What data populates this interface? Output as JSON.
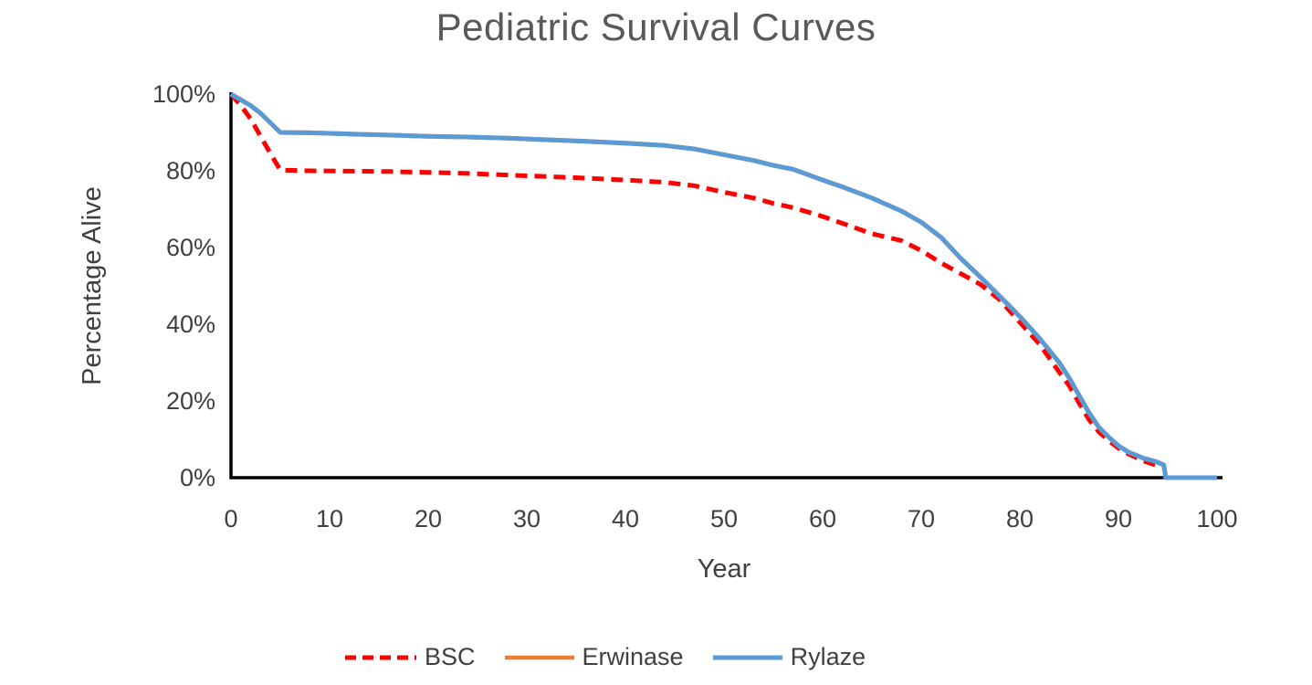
{
  "title": "Pediatric Survival Curves",
  "colors": {
    "title_text": "#595959",
    "axis_text": "#404040",
    "axis_line": "#000000",
    "background": "#ffffff",
    "bsc_red": "#ff0000",
    "erwinase_orange": "#ed7d31",
    "rylaze_blue": "#5b9bd5"
  },
  "chart_data": {
    "type": "line",
    "title": "Pediatric Survival Curves",
    "xlabel": "Year",
    "ylabel": "Percentage Alive",
    "xlim": [
      0,
      100
    ],
    "ylim": [
      0,
      100
    ],
    "xticks": [
      0,
      10,
      20,
      30,
      40,
      50,
      60,
      70,
      80,
      90,
      100
    ],
    "yticks": [
      0,
      20,
      40,
      60,
      80,
      100
    ],
    "ytick_labels": [
      "0%",
      "20%",
      "40%",
      "60%",
      "80%",
      "100%"
    ],
    "grid": false,
    "legend_position": "bottom-center",
    "series": [
      {
        "name": "BSC",
        "color": "#ff0000",
        "style": "dashed",
        "visible_in_plot": true,
        "points": [
          [
            0,
            100
          ],
          [
            1,
            97
          ],
          [
            2,
            93.5
          ],
          [
            3,
            89
          ],
          [
            4,
            84.5
          ],
          [
            5,
            80.2
          ],
          [
            8,
            80
          ],
          [
            12,
            79.9
          ],
          [
            16,
            79.8
          ],
          [
            20,
            79.6
          ],
          [
            24,
            79.3
          ],
          [
            28,
            78.9
          ],
          [
            32,
            78.5
          ],
          [
            36,
            78.1
          ],
          [
            40,
            77.6
          ],
          [
            44,
            77
          ],
          [
            47,
            76.1
          ],
          [
            50,
            74.4
          ],
          [
            53,
            72.9
          ],
          [
            55,
            71.5
          ],
          [
            57,
            70.4
          ],
          [
            60,
            68.1
          ],
          [
            62,
            66.3
          ],
          [
            65,
            63.6
          ],
          [
            68,
            61.8
          ],
          [
            70,
            59.2
          ],
          [
            72,
            56
          ],
          [
            74,
            53.2
          ],
          [
            76,
            50.4
          ],
          [
            78,
            46.3
          ],
          [
            80,
            40.5
          ],
          [
            82,
            34.8
          ],
          [
            84,
            27.5
          ],
          [
            85,
            24
          ],
          [
            86,
            19.5
          ],
          [
            87,
            15.2
          ],
          [
            88,
            12
          ],
          [
            89,
            9.7
          ],
          [
            90,
            7.7
          ],
          [
            91,
            6.2
          ],
          [
            92.5,
            4.4
          ],
          [
            94,
            3.1
          ]
        ]
      },
      {
        "name": "Erwinase",
        "color": "#ed7d31",
        "style": "solid",
        "visible_in_plot": false,
        "points": [
          [
            0,
            100
          ],
          [
            1,
            98.5
          ],
          [
            2,
            97
          ],
          [
            3,
            95
          ],
          [
            4,
            92.5
          ],
          [
            5,
            90
          ],
          [
            8,
            89.9
          ],
          [
            12,
            89.6
          ],
          [
            16,
            89.3
          ],
          [
            20,
            89
          ],
          [
            24,
            88.8
          ],
          [
            28,
            88.5
          ],
          [
            32,
            88.1
          ],
          [
            36,
            87.7
          ],
          [
            40,
            87.2
          ],
          [
            44,
            86.6
          ],
          [
            47,
            85.7
          ],
          [
            50,
            84.2
          ],
          [
            53,
            82.7
          ],
          [
            55,
            81.4
          ],
          [
            57,
            80.4
          ],
          [
            60,
            77.6
          ],
          [
            62,
            75.8
          ],
          [
            65,
            72.9
          ],
          [
            68,
            69.5
          ],
          [
            70,
            66.6
          ],
          [
            72,
            62.7
          ],
          [
            74,
            57.2
          ],
          [
            76,
            52.3
          ],
          [
            78,
            47.2
          ],
          [
            80,
            42
          ],
          [
            82,
            36.3
          ],
          [
            84,
            30
          ],
          [
            85,
            26
          ],
          [
            86,
            21.5
          ],
          [
            87,
            17
          ],
          [
            88,
            13.2
          ],
          [
            89,
            10.6
          ],
          [
            90,
            8.3
          ],
          [
            91,
            6.7
          ],
          [
            92.5,
            5.1
          ],
          [
            93.8,
            4.2
          ],
          [
            94.6,
            3.3
          ],
          [
            94.8,
            0
          ],
          [
            100,
            0
          ]
        ]
      },
      {
        "name": "Rylaze",
        "color": "#5b9bd5",
        "style": "solid",
        "visible_in_plot": true,
        "points": [
          [
            0,
            100
          ],
          [
            1,
            98.5
          ],
          [
            2,
            97
          ],
          [
            3,
            95
          ],
          [
            4,
            92.5
          ],
          [
            5,
            90
          ],
          [
            8,
            89.9
          ],
          [
            12,
            89.6
          ],
          [
            16,
            89.3
          ],
          [
            20,
            89
          ],
          [
            24,
            88.8
          ],
          [
            28,
            88.5
          ],
          [
            32,
            88.1
          ],
          [
            36,
            87.7
          ],
          [
            40,
            87.2
          ],
          [
            44,
            86.6
          ],
          [
            47,
            85.7
          ],
          [
            50,
            84.2
          ],
          [
            53,
            82.7
          ],
          [
            55,
            81.4
          ],
          [
            57,
            80.4
          ],
          [
            60,
            77.6
          ],
          [
            62,
            75.8
          ],
          [
            65,
            72.9
          ],
          [
            68,
            69.5
          ],
          [
            70,
            66.6
          ],
          [
            72,
            62.7
          ],
          [
            74,
            57.2
          ],
          [
            76,
            52.3
          ],
          [
            78,
            47.2
          ],
          [
            80,
            42
          ],
          [
            82,
            36.3
          ],
          [
            84,
            30
          ],
          [
            85,
            26
          ],
          [
            86,
            21.5
          ],
          [
            87,
            17
          ],
          [
            88,
            13.2
          ],
          [
            89,
            10.6
          ],
          [
            90,
            8.3
          ],
          [
            91,
            6.7
          ],
          [
            92.5,
            5.1
          ],
          [
            93.8,
            4.2
          ],
          [
            94.6,
            3.3
          ],
          [
            94.8,
            0
          ],
          [
            100,
            0
          ]
        ]
      }
    ]
  }
}
